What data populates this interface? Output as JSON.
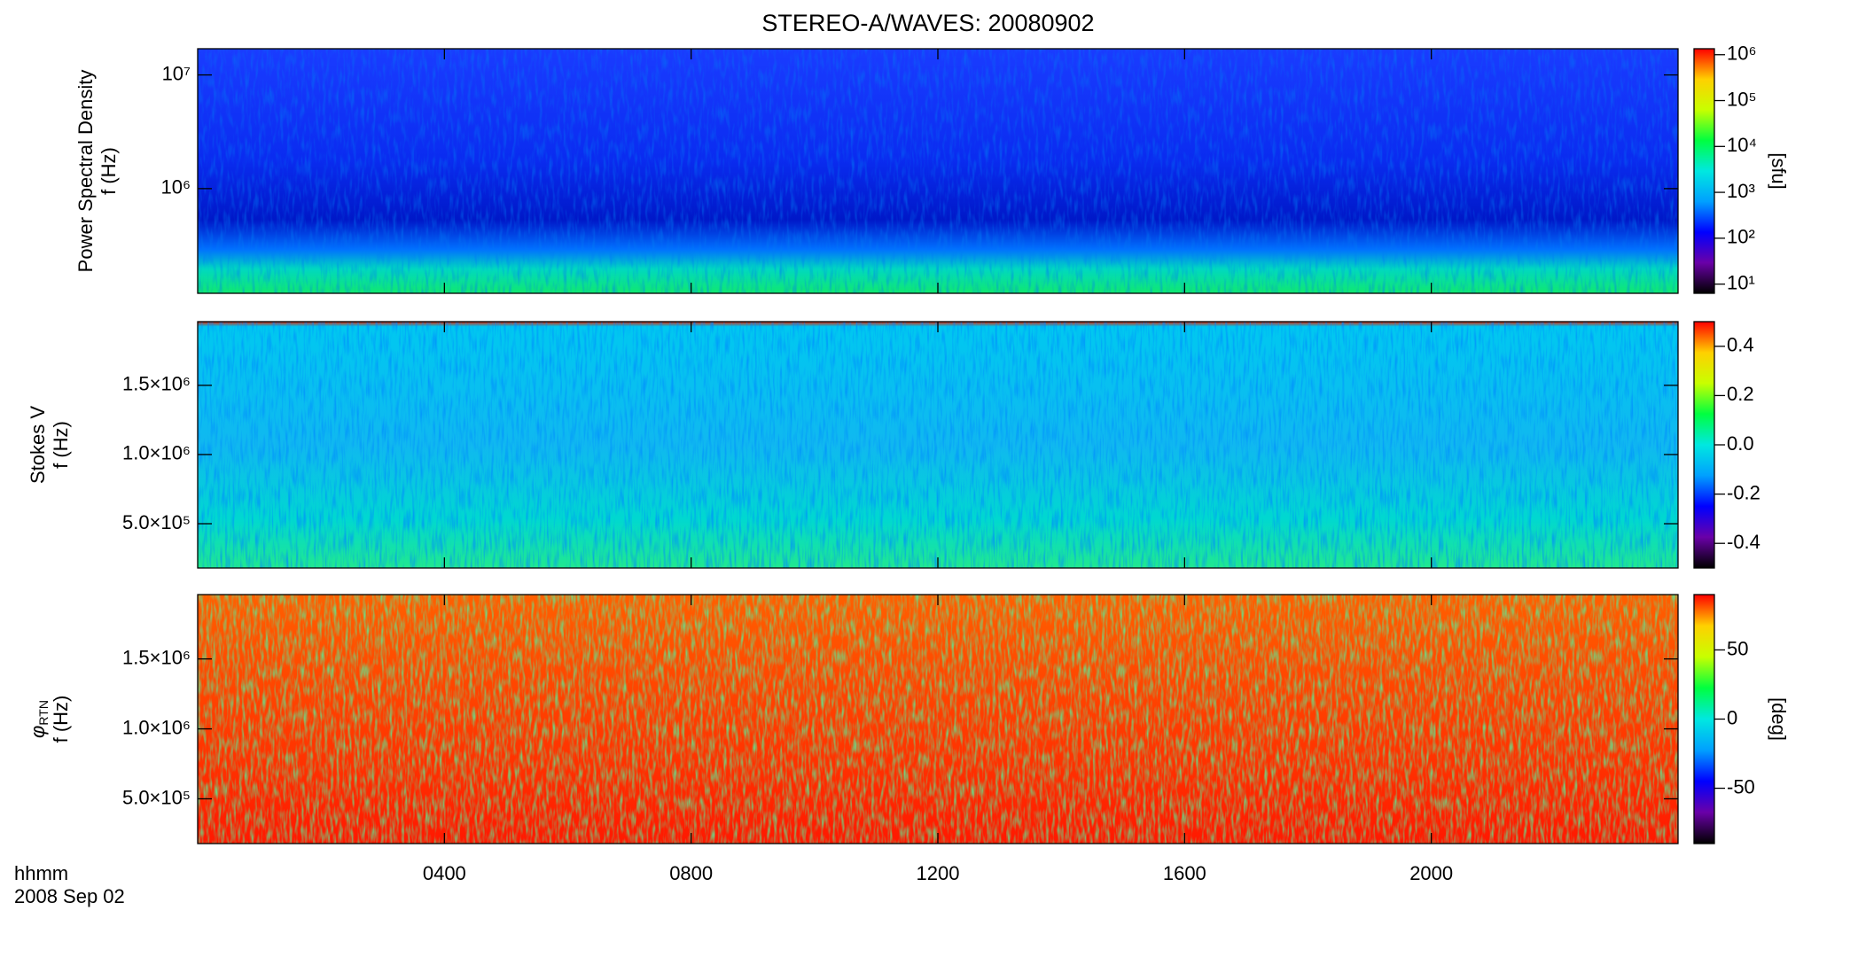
{
  "figure": {
    "title": "STEREO-A/WAVES: 20080902",
    "x_label": [
      "hhmm",
      "2008 Sep 02"
    ],
    "xlim": [
      0,
      24
    ],
    "xticks": [
      {
        "value": 4,
        "label": "0400"
      },
      {
        "value": 8,
        "label": "0800"
      },
      {
        "value": 12,
        "label": "1200"
      },
      {
        "value": 16,
        "label": "1600"
      },
      {
        "value": 20,
        "label": "2000"
      }
    ],
    "colormap": [
      "#000000",
      "#6a00a8",
      "#0000ff",
      "#00a0ff",
      "#00e8e0",
      "#00ff40",
      "#c8ff00",
      "#ffd000",
      "#ff0000"
    ]
  },
  "chart_data": [
    {
      "type": "spectrogram",
      "ylabel": [
        "Power Spectral Density",
        "f (Hz)"
      ],
      "log": true,
      "ylim": [
        120000,
        17000000
      ],
      "yticks": [
        {
          "value": 1000000,
          "label": "10⁶"
        },
        {
          "value": 10000000,
          "label": "10⁷"
        }
      ],
      "colorbar": {
        "log": true,
        "lim": [
          6.3,
          1350000
        ],
        "label": "[sfu]",
        "ticks": [
          {
            "value": 10,
            "label": "10¹"
          },
          {
            "value": 100,
            "label": "10²"
          },
          {
            "value": 1000,
            "label": "10³"
          },
          {
            "value": 10000,
            "label": "10⁴"
          },
          {
            "value": 100000,
            "label": "10⁵"
          },
          {
            "value": 1000000,
            "label": "10⁶"
          }
        ]
      }
    },
    {
      "type": "spectrogram",
      "ylabel": [
        "Stokes V",
        "f (Hz)"
      ],
      "log": false,
      "ylim": [
        180000,
        1960000
      ],
      "yticks": [
        {
          "value": 500000,
          "label": "5.0×10⁵"
        },
        {
          "value": 1000000,
          "label": "1.0×10⁶"
        },
        {
          "value": 1500000,
          "label": "1.5×10⁶"
        }
      ],
      "colorbar": {
        "log": false,
        "lim": [
          -0.5,
          0.5
        ],
        "ticks": [
          {
            "value": -0.4,
            "label": "-0.4"
          },
          {
            "value": -0.2,
            "label": "-0.2"
          },
          {
            "value": 0,
            "label": "0.0"
          },
          {
            "value": 0.2,
            "label": "0.2"
          },
          {
            "value": 0.4,
            "label": "0.4"
          }
        ]
      }
    },
    {
      "type": "spectrogram",
      "ylabel": [
        {
          "text": "φ",
          "sub": "RTN"
        },
        "f (Hz)"
      ],
      "log": false,
      "ylim": [
        180000,
        1960000
      ],
      "yticks": [
        {
          "value": 500000,
          "label": "5.0×10⁵"
        },
        {
          "value": 1000000,
          "label": "1.0×10⁶"
        },
        {
          "value": 1500000,
          "label": "1.5×10⁶"
        }
      ],
      "colorbar": {
        "log": false,
        "lim": [
          -90,
          90
        ],
        "label": "[deg]",
        "ticks": [
          -50,
          0,
          50
        ]
      }
    }
  ]
}
